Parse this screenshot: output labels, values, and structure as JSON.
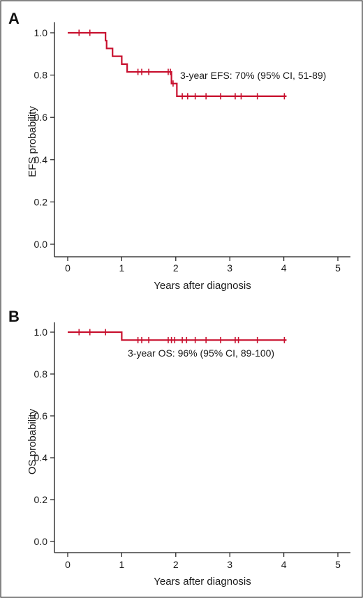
{
  "colors": {
    "curve": "#C8102E",
    "axis": "#1a1a1a",
    "frame": "#333333"
  },
  "chart_data": [
    {
      "type": "line",
      "panel_label": "A",
      "xlabel": "Years after diagnosis",
      "ylabel": "EFS probability",
      "xlim": [
        0,
        5
      ],
      "ylim": [
        0,
        1
      ],
      "xticks": [
        "0",
        "1",
        "2",
        "3",
        "4",
        "5"
      ],
      "yticks": [
        "0.0",
        "0.2",
        "0.4",
        "0.6",
        "0.8",
        "1.0"
      ],
      "annotation": "3-year EFS: 70% (95% CI, 51-89)",
      "series": [
        {
          "steps": [
            [
              0,
              1.0
            ],
            [
              0.7,
              0.963
            ],
            [
              0.72,
              0.926
            ],
            [
              0.83,
              0.889
            ],
            [
              1.0,
              0.852
            ],
            [
              1.1,
              0.815
            ],
            [
              1.92,
              0.76
            ],
            [
              2.02,
              0.7
            ],
            [
              4.05,
              0.7
            ]
          ],
          "censor_x": [
            0.21,
            0.41,
            1.3,
            1.37,
            1.5,
            1.86,
            1.9,
            1.95,
            2.12,
            2.22,
            2.36,
            2.56,
            2.83,
            3.1,
            3.21,
            3.51,
            4.01
          ]
        }
      ]
    },
    {
      "type": "line",
      "panel_label": "B",
      "xlabel": "Years after diagnosis",
      "ylabel": "OS probability",
      "xlim": [
        0,
        5
      ],
      "ylim": [
        0,
        1
      ],
      "xticks": [
        "0",
        "1",
        "2",
        "3",
        "4",
        "5"
      ],
      "yticks": [
        "0.0",
        "0.2",
        "0.4",
        "0.6",
        "0.8",
        "1.0"
      ],
      "annotation": "3-year OS: 96% (95% CI, 89-100)",
      "series": [
        {
          "steps": [
            [
              0,
              1.0
            ],
            [
              1.0,
              0.962
            ],
            [
              4.05,
              0.962
            ]
          ],
          "censor_x": [
            0.21,
            0.41,
            0.7,
            1.3,
            1.37,
            1.5,
            1.86,
            1.92,
            1.98,
            2.12,
            2.2,
            2.36,
            2.56,
            2.83,
            3.1,
            3.16,
            3.51,
            4.01
          ]
        }
      ]
    }
  ]
}
